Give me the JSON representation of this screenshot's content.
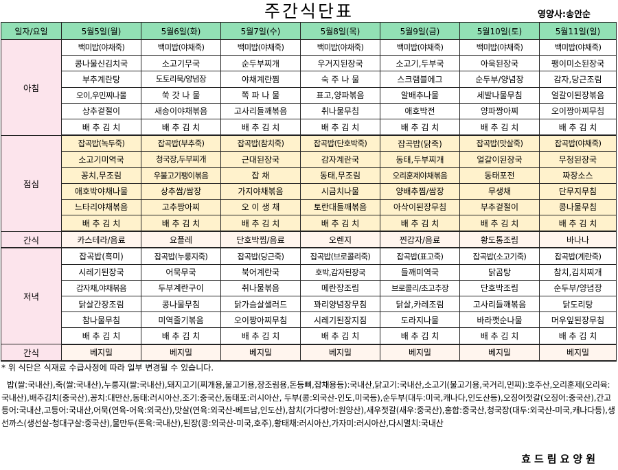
{
  "title": "주간식단표",
  "dietitian": "영양사:송안순",
  "header": [
    "일자/요일",
    "5월5일(월)",
    "5월6일(화)",
    "5월7일(수)",
    "5월8일(목)",
    "5월9일(금)",
    "5월10일(토)",
    "5월11일(일)"
  ],
  "breakfast": {
    "label": "아침",
    "rows": [
      [
        "백미밥(야채죽)",
        "백미밥(야채죽)",
        "백미밥(야채죽)",
        "백미밥(야채죽)",
        "백미밥(야채죽)",
        "백미밥(야채죽)",
        "백미밥(야채죽)"
      ],
      [
        "콩나물신김치국",
        "소고기무국",
        "순두부찌개",
        "우거지된장국",
        "소고기,두부국",
        "아욱된장국",
        "팽이미소된장국"
      ],
      [
        "부추계란탕",
        "도토리묵/양념장",
        "야채계란찜",
        "숙 주 나 물",
        "스크램블에그",
        "순두부/양념장",
        "감자,당근조림"
      ],
      [
        "오이,우민찌나물",
        "쑥 갓 나 물",
        "쪽 파 나 물",
        "표고,양파볶음",
        "알배추나물",
        "세발나물무침",
        "얼갈이된장볶음"
      ],
      [
        "상추겉절이",
        "새송이야채볶음",
        "고사리들깨볶음",
        "취나물무침",
        "애호박전",
        "양파짱아찌",
        "오이짱아찌무침"
      ],
      [
        "배 추 김 치",
        "배 추 김 치",
        "배 추 김 치",
        "배 추 김 치",
        "배 추 김 치",
        "배 추 김 치",
        "배 추 김 치"
      ]
    ]
  },
  "lunch": {
    "label": "점심",
    "rows": [
      [
        "잡곡밥(녹두죽)",
        "잡곡밥(부추죽)",
        "잡곡밥(참치죽)",
        "잡곡밥(단호박죽)",
        "잡곡밥(닭죽)",
        "잡곡밥(맛살죽)",
        "잡곡밥(야채죽)"
      ],
      [
        "소고기미역국",
        "청국장,두부찌개",
        "근대된장국",
        "감자계란국",
        "동태,두부찌개",
        "얼갈이된장국",
        "무청된장국"
      ],
      [
        "꽁치,무조림",
        "우불고기팽이볶음",
        "잡 채",
        "동태,무조림",
        "오리훈제야채볶음",
        "동태포전",
        "짜장소스"
      ],
      [
        "애호박야채나물",
        "상추쌈/쌈장",
        "가지야채볶음",
        "시금치나물",
        "양배추찜/쌈장",
        "무생채",
        "단무지무침"
      ],
      [
        "느타리야채볶음",
        "고추짱아찌",
        "오 이 생 채",
        "토란대들깨볶음",
        "아삭이된장무침",
        "부추겉절이",
        "콩나물무침"
      ],
      [
        "배 추 김 치",
        "배 추 김 치",
        "배 추 김 치",
        "배 추 김 치",
        "배 추 김 치",
        "배 추 김 치",
        "배 추 김 치"
      ]
    ]
  },
  "snack1": {
    "label": "간식",
    "items": [
      "카스테라/음료",
      "요플레",
      "단호박찜/음료",
      "오렌지",
      "찐감자/음료",
      "황도통조림",
      "바나나"
    ]
  },
  "dinner": {
    "label": "저녁",
    "rows": [
      [
        "잡곡밥(흑미)",
        "잡곡밥(누룽지죽)",
        "잡곡밥(당근죽)",
        "잡곡밥(브로콜리죽)",
        "잡곡밥(표고죽)",
        "잡곡밥(소고기죽)",
        "잡곡밥(계란죽)"
      ],
      [
        "시레기된장국",
        "어묵무국",
        "북어계란국",
        "호박,감자된장국",
        "들깨미역국",
        "닭곰탕",
        "참치,김치찌개"
      ],
      [
        "감자채,야채볶음",
        "두부계란구이",
        "취나물볶음",
        "메란장조림",
        "브로콜리/초고추장",
        "단호박조림",
        "순두부/양념장"
      ],
      [
        "닭살간장조림",
        "콩나물무침",
        "닭가슴살샐러드",
        "꽈리양념장무침",
        "닭살,카레조림",
        "고사리들깨볶음",
        "닭도리탕"
      ],
      [
        "참나물무침",
        "미역줄기볶음",
        "오이짱아찌무침",
        "시레기된장지짐",
        "도라지나물",
        "바라깻순나물",
        "머우잎된장무침"
      ],
      [
        "배 추 김 치",
        "배 추 김 치",
        "배 추 김 치",
        "배 추 김 치",
        "배 추 김 치",
        "배 추 김 치",
        "배 추 김 치"
      ]
    ]
  },
  "snack2": {
    "label": "간식",
    "items": [
      "베지밀",
      "베지밀",
      "베지밀",
      "베지밀",
      "베지밀",
      "베지밀",
      "베지밀"
    ]
  },
  "note": "* 위 식단은 식재료 수급사정에 따라 일부 변경될 수 있습니다.",
  "origin": "밥(쌀:국내산),죽(쌀:국내산),누룽지(쌀:국내산),돼지고기(찌개용,불고기용,장조림용,돈등뼈,잡채용등):국내산,닭고기:국내산,소고기(불고기용,국거리,민찌):호주산,오리훈제(오리육:국내산),배추김치(중국산),꽁치:대만산,동태:러시아산,조기:중국산,동태포:러시아산, 두부(콩:외국산-인도,미국등),순두부(대두:미국,캐나다,인도산등),오징어젓갈(오징어:중국산),간고등어:국내산,고등어:국내산,어묵(연육-어육:외국산),맛살(연육:외국산-베트남,인도산),참치(가다랑어:원양산),새우젓갈(새우:중국산),홍합:중국산,청국장(대두:외국산-미국,캐나다등),생선까스(생선살-청대구살:중국산),물만두(돈육:국내산),된장(콩:외국산-미국,호주),황태채:러시아산,가자미:러시아산,다시멸치:국내산",
  "footer": "효드림요양원"
}
